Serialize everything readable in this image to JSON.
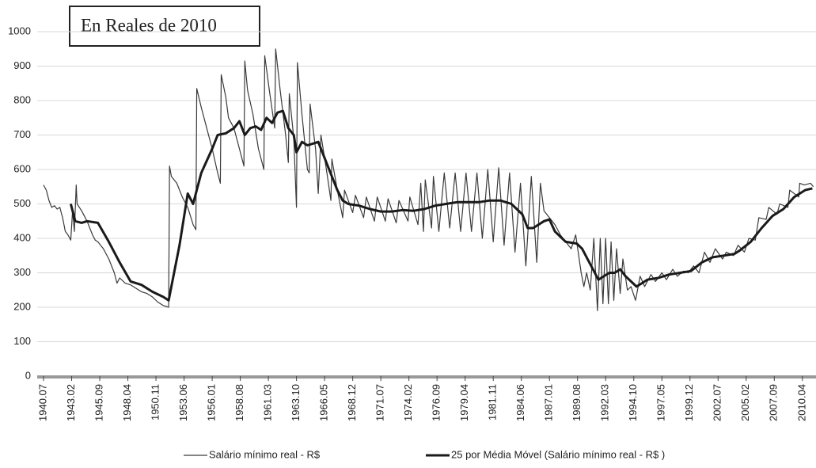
{
  "chart_data": {
    "type": "line",
    "title": "En Reales de 2010",
    "xlim": [
      "1939.12",
      "2011.07"
    ],
    "xticks": [
      "1940.07",
      "1943.02",
      "1945.09",
      "1948.04",
      "1950.11",
      "1953.06",
      "1956.01",
      "1958.08",
      "1961.03",
      "1963.10",
      "1966.05",
      "1968.12",
      "1971.07",
      "1974.02",
      "1976.09",
      "1979.04",
      "1981.11",
      "1984.06",
      "1987.01",
      "1989.08",
      "1992.03",
      "1994.10",
      "1997.05",
      "1999.12",
      "2002.07",
      "2005.02",
      "2007.09",
      "2010.04"
    ],
    "ylim": [
      0,
      1000
    ],
    "yticks": [
      0,
      100,
      200,
      300,
      400,
      500,
      600,
      700,
      800,
      900,
      1000
    ],
    "grid": true,
    "legend": "bottom",
    "series": [
      {
        "name": "Salário mínimo real - R$",
        "color": "#3a3a3a",
        "width": 1.2,
        "x": [
          "1940.07",
          "1940.10",
          "1941.01",
          "1941.04",
          "1941.07",
          "1941.10",
          "1942.01",
          "1942.04",
          "1942.07",
          "1942.10",
          "1943.01",
          "1943.03",
          "1943.05",
          "1943.07",
          "1943.08",
          "1944.01",
          "1944.07",
          "1945.01",
          "1945.04",
          "1945.07",
          "1946.01",
          "1946.07",
          "1947.01",
          "1947.04",
          "1947.07",
          "1948.01",
          "1948.07",
          "1949.01",
          "1949.07",
          "1950.01",
          "1950.07",
          "1951.01",
          "1951.07",
          "1952.01",
          "1952.02",
          "1952.04",
          "1952.10",
          "1953.04",
          "1953.10",
          "1954.04",
          "1954.07",
          "1954.08",
          "1955.01",
          "1955.07",
          "1956.01",
          "1956.07",
          "1956.10",
          "1956.11",
          "1957.04",
          "1957.07",
          "1958.01",
          "1958.07",
          "1958.12",
          "1959.01",
          "1959.04",
          "1959.10",
          "1960.04",
          "1960.10",
          "1960.11",
          "1961.04",
          "1961.10",
          "1961.11",
          "1962.04",
          "1962.10",
          "1963.01",
          "1963.02",
          "1963.07",
          "1963.10",
          "1963.11",
          "1964.04",
          "1964.10",
          "1964.12",
          "1965.01",
          "1965.07",
          "1965.10",
          "1966.01",
          "1966.07",
          "1966.12",
          "1967.01",
          "1967.07",
          "1968.01",
          "1968.03",
          "1968.12",
          "1969.03",
          "1969.12",
          "1970.03",
          "1970.12",
          "1971.03",
          "1971.12",
          "1972.03",
          "1972.12",
          "1973.03",
          "1974.01",
          "1974.03",
          "1974.12",
          "1975.03",
          "1975.06",
          "1975.08",
          "1976.03",
          "1976.05",
          "1976.11",
          "1977.05",
          "1977.11",
          "1978.05",
          "1978.11",
          "1979.05",
          "1979.11",
          "1980.05",
          "1980.11",
          "1981.05",
          "1981.11",
          "1982.05",
          "1982.11",
          "1983.05",
          "1983.11",
          "1984.05",
          "1984.11",
          "1985.05",
          "1985.11",
          "1986.03",
          "1986.07",
          "1987.01",
          "1987.07",
          "1988.01",
          "1988.07",
          "1989.01",
          "1989.06",
          "1989.12",
          "1990.03",
          "1990.06",
          "1990.10",
          "1991.02",
          "1991.06",
          "1991.09",
          "1991.12",
          "1992.03",
          "1992.06",
          "1992.09",
          "1992.12",
          "1993.03",
          "1993.07",
          "1993.10",
          "1994.03",
          "1994.07",
          "1994.12",
          "1995.05",
          "1995.10",
          "1996.05",
          "1996.10",
          "1997.05",
          "1997.10",
          "1998.05",
          "1998.10",
          "1999.05",
          "1999.10",
          "2000.04",
          "2000.10",
          "2001.04",
          "2001.10",
          "2002.04",
          "2002.12",
          "2003.04",
          "2003.12",
          "2004.05",
          "2004.12",
          "2005.05",
          "2005.12",
          "2006.04",
          "2006.12",
          "2007.03",
          "2007.12",
          "2008.03",
          "2008.12",
          "2009.02",
          "2009.12",
          "2010.01",
          "2010.06",
          "2011.01",
          "2011.04"
        ],
        "values": [
          555,
          540,
          510,
          490,
          495,
          485,
          490,
          460,
          420,
          410,
          395,
          480,
          420,
          555,
          500,
          480,
          450,
          410,
          395,
          390,
          370,
          340,
          300,
          270,
          285,
          270,
          265,
          255,
          245,
          240,
          230,
          215,
          205,
          200,
          610,
          580,
          560,
          520,
          490,
          440,
          425,
          835,
          780,
          720,
          660,
          590,
          560,
          875,
          810,
          750,
          720,
          660,
          610,
          915,
          830,
          760,
          660,
          600,
          930,
          830,
          720,
          950,
          830,
          700,
          620,
          820,
          690,
          490,
          910,
          760,
          600,
          590,
          790,
          660,
          530,
          700,
          600,
          510,
          630,
          540,
          460,
          540,
          475,
          525,
          460,
          520,
          450,
          520,
          450,
          515,
          445,
          510,
          450,
          520,
          440,
          560,
          420,
          570,
          430,
          580,
          420,
          590,
          430,
          590,
          420,
          590,
          420,
          590,
          400,
          600,
          390,
          605,
          380,
          590,
          360,
          560,
          320,
          580,
          330,
          560,
          480,
          460,
          440,
          410,
          390,
          370,
          410,
          300,
          260,
          300,
          250,
          400,
          190,
          400,
          210,
          400,
          210,
          390,
          220,
          370,
          240,
          340,
          250,
          260,
          220,
          290,
          260,
          295,
          275,
          300,
          280,
          310,
          290,
          305,
          300,
          320,
          300,
          360,
          330,
          370,
          340,
          360,
          350,
          380,
          360,
          400,
          395,
          460,
          455,
          490,
          470,
          500,
          490,
          540,
          520,
          560,
          555,
          560,
          550
        ]
      },
      {
        "name": "25 por Média Móvel (Salário mínimo real - R$ )",
        "color": "#1a1a1a",
        "width": 3,
        "x": [
          "1943.01",
          "1943.06",
          "1944.01",
          "1944.07",
          "1945.07",
          "1946.07",
          "1947.07",
          "1948.07",
          "1949.07",
          "1950.07",
          "1951.07",
          "1952.01",
          "1953.01",
          "1953.10",
          "1954.04",
          "1955.01",
          "1956.01",
          "1956.07",
          "1957.04",
          "1958.01",
          "1958.07",
          "1959.01",
          "1959.07",
          "1960.01",
          "1960.07",
          "1961.01",
          "1961.07",
          "1962.01",
          "1962.07",
          "1963.01",
          "1963.07",
          "1963.10",
          "1964.04",
          "1964.10",
          "1965.04",
          "1965.10",
          "1966.07",
          "1967.01",
          "1967.07",
          "1968.01",
          "1968.07",
          "1969.07",
          "1970.07",
          "1971.07",
          "1972.07",
          "1973.07",
          "1974.07",
          "1975.07",
          "1976.07",
          "1977.07",
          "1978.07",
          "1979.07",
          "1980.07",
          "1981.07",
          "1982.07",
          "1983.07",
          "1984.07",
          "1985.01",
          "1985.07",
          "1986.07",
          "1987.01",
          "1987.07",
          "1988.07",
          "1989.07",
          "1990.01",
          "1990.07",
          "1991.01",
          "1991.07",
          "1992.01",
          "1992.07",
          "1993.01",
          "1993.07",
          "1994.01",
          "1994.07",
          "1995.01",
          "1995.07",
          "1996.01",
          "1997.01",
          "1998.01",
          "1999.01",
          "2000.01",
          "2001.01",
          "2002.01",
          "2003.01",
          "2004.01",
          "2004.07",
          "2005.07",
          "2006.07",
          "2007.07",
          "2008.07",
          "2009.07",
          "2010.07",
          "2011.03"
        ],
        "values": [
          500,
          450,
          445,
          450,
          445,
          390,
          330,
          275,
          265,
          245,
          230,
          220,
          380,
          530,
          500,
          590,
          660,
          700,
          705,
          720,
          740,
          700,
          720,
          725,
          715,
          750,
          735,
          765,
          770,
          720,
          700,
          650,
          680,
          670,
          675,
          680,
          620,
          580,
          540,
          510,
          500,
          495,
          485,
          478,
          478,
          482,
          480,
          485,
          495,
          500,
          505,
          505,
          505,
          510,
          510,
          500,
          470,
          430,
          430,
          450,
          455,
          420,
          390,
          385,
          370,
          340,
          310,
          280,
          290,
          300,
          300,
          310,
          290,
          275,
          260,
          270,
          280,
          285,
          295,
          300,
          305,
          330,
          345,
          350,
          355,
          365,
          390,
          430,
          465,
          485,
          520,
          540,
          545
        ]
      }
    ]
  }
}
